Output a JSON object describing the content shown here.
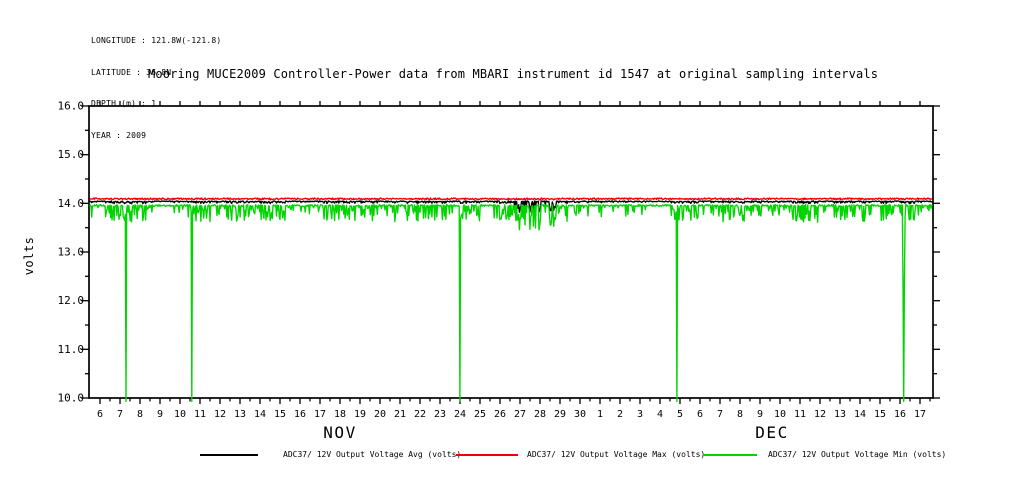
{
  "header": {
    "lines": [
      "LONGITUDE : 121.8W(-121.8)",
      "LATITUDE : 36.8N",
      "DEPTH (m) : 1",
      "YEAR : 2009"
    ]
  },
  "chart": {
    "title": "Mooring MUCE2009 Controller-Power data from MBARI instrument id 1547 at original sampling intervals",
    "ylabel": "volts"
  },
  "chart_data": {
    "type": "line",
    "title": "Mooring MUCE2009 Controller-Power data from MBARI instrument id 1547 at original sampling intervals",
    "ylabel": "volts",
    "ylim": [
      10.0,
      16.0
    ],
    "ytick_major": 1.0,
    "ytick_minor": 0.5,
    "y_tick_labels": [
      "10.0",
      "11.0",
      "12.0",
      "13.0",
      "14.0",
      "15.0",
      "16.0"
    ],
    "grid": false,
    "legend_position": "bottom",
    "x_months": [
      {
        "label": "NOV",
        "days_in_month": 30,
        "days": [
          6,
          7,
          8,
          9,
          10,
          11,
          12,
          13,
          14,
          15,
          16,
          17,
          18,
          19,
          20,
          21,
          22,
          23,
          24,
          25,
          26,
          27,
          28,
          29,
          30
        ],
        "label_center_day": 18.0
      },
      {
        "label": "DEC",
        "days_in_month": 31,
        "days": [
          1,
          2,
          3,
          4,
          5,
          6,
          7,
          8,
          9,
          10,
          11,
          12,
          13,
          14,
          15,
          16,
          17
        ],
        "label_center_day": 9.6
      }
    ],
    "series": [
      {
        "name": "max",
        "legend": "ADC37/ 12V Output Voltage Max (volts)",
        "color": "#f00000",
        "baseline_volts": 14.1
      },
      {
        "name": "avg",
        "legend": "ADC37/ 12V Output Voltage Avg (volts)",
        "color": "#000000",
        "baseline_volts": 14.04
      },
      {
        "name": "min",
        "legend": "ADC37/ 12V Output Voltage Min (volts)",
        "color": "#00d500",
        "baseline_volts": 13.96
      }
    ],
    "noise_dips": {
      "typical_dip_floor_volts": 13.55,
      "typical_dip_top_volts": 13.95,
      "burst_intervals_day_units": [
        [
          6.2,
          8.6
        ],
        [
          10.4,
          15.7
        ],
        [
          16.9,
          19.9
        ],
        [
          20.3,
          23.3
        ],
        [
          24.0,
          25.0
        ],
        [
          25.7,
          29.4
        ],
        [
          34.4,
          36.1
        ],
        [
          36.9,
          39.7
        ],
        [
          40.6,
          44.4
        ],
        [
          45.0,
          47.6
        ]
      ],
      "dense_deep_interval_day_units": [
        26.7,
        28.8
      ]
    },
    "deep_dips": [
      {
        "month": "NOV",
        "day": 7.3,
        "min_volts": 10.0
      },
      {
        "month": "NOV",
        "day": 10.6,
        "min_volts": 10.0
      },
      {
        "month": "NOV",
        "day": 24.0,
        "min_volts": 10.0
      },
      {
        "month": "DEC",
        "day": 4.85,
        "min_volts": 10.0
      },
      {
        "month": "DEC",
        "day": 16.2,
        "min_volts": 10.0,
        "wide_drop_to_volts": 12.4
      }
    ]
  }
}
